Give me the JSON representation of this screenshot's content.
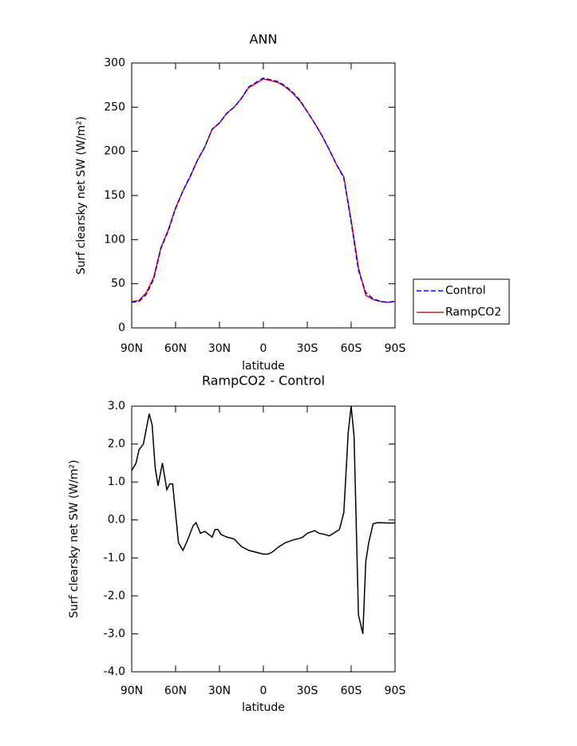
{
  "chart_data": [
    {
      "type": "line",
      "title": "ANN",
      "x_label": "latitude",
      "y_label": "Surf clearsky net SW (W/m²)",
      "x": [
        90,
        85,
        80,
        75,
        70,
        65,
        60,
        55,
        50,
        45,
        40,
        35,
        30,
        25,
        20,
        15,
        10,
        5,
        0,
        -5,
        -10,
        -15,
        -20,
        -25,
        -30,
        -35,
        -40,
        -45,
        -50,
        -55,
        -60,
        -65,
        -70,
        -75,
        -80,
        -85,
        -90
      ],
      "series": [
        {
          "name": "Control",
          "color": "#0000ff",
          "linestyle": "dashed",
          "values": [
            29,
            30,
            38,
            55,
            90,
            110,
            135,
            155,
            172,
            190,
            205,
            225,
            232,
            243,
            250,
            260,
            273,
            278,
            283,
            281,
            279,
            274,
            267,
            258,
            245,
            232,
            218,
            202,
            185,
            170,
            120,
            65,
            40,
            33,
            30,
            29,
            30
          ]
        },
        {
          "name": "RampCO2",
          "color": "#ff0000",
          "linestyle": "solid",
          "values": [
            30,
            31,
            40,
            57,
            91,
            111,
            136,
            155,
            171,
            190,
            205,
            225,
            232,
            243,
            250,
            260,
            272,
            277,
            282,
            280,
            278,
            273,
            266,
            257,
            245,
            232,
            218,
            202,
            185,
            171,
            122,
            68,
            37,
            32,
            30,
            29,
            30
          ]
        }
      ],
      "xlim": [
        90,
        -90
      ],
      "xticks": [
        {
          "value": 90,
          "label": "90N"
        },
        {
          "value": 60,
          "label": "60N"
        },
        {
          "value": 30,
          "label": "30N"
        },
        0,
        {
          "value": -30,
          "label": "30S"
        },
        {
          "value": -60,
          "label": "60S"
        },
        {
          "value": -90,
          "label": "90S"
        }
      ],
      "ylim": [
        0,
        300
      ],
      "yticks": [
        0,
        50,
        100,
        150,
        200,
        250,
        300
      ],
      "legend": "right"
    },
    {
      "type": "line",
      "title": "RampCO2 - Control",
      "x_label": "latitude",
      "y_label": "Surf clearsky net SW (W/m²)",
      "x": [
        90,
        87,
        85,
        82,
        78,
        76,
        74,
        72,
        69,
        66,
        64,
        62,
        58,
        55,
        52,
        48,
        46,
        43,
        40,
        35,
        33,
        31,
        29,
        25,
        20,
        15,
        10,
        5,
        0,
        -3,
        -6,
        -10,
        -15,
        -20,
        -25,
        -27,
        -30,
        -35,
        -38,
        -42,
        -45,
        -48,
        -52,
        -55,
        -58,
        -60,
        -62,
        -65,
        -68,
        -70,
        -72,
        -75,
        -78,
        -85,
        -90
      ],
      "values": [
        1.3,
        1.5,
        1.85,
        2.0,
        2.8,
        2.5,
        1.4,
        0.9,
        1.5,
        0.8,
        0.95,
        0.95,
        -0.6,
        -0.8,
        -0.55,
        -0.15,
        -0.07,
        -0.35,
        -0.3,
        -0.45,
        -0.25,
        -0.25,
        -0.38,
        -0.45,
        -0.5,
        -0.7,
        -0.8,
        -0.85,
        -0.9,
        -0.9,
        -0.85,
        -0.72,
        -0.6,
        -0.53,
        -0.48,
        -0.45,
        -0.35,
        -0.28,
        -0.35,
        -0.38,
        -0.42,
        -0.35,
        -0.25,
        0.2,
        2.3,
        3.0,
        2.2,
        -2.5,
        -3.0,
        -1.1,
        -0.6,
        -0.1,
        -0.07,
        -0.08,
        -0.08
      ],
      "color": "#000000",
      "xlim": [
        90,
        -90
      ],
      "xticks": [
        {
          "value": 90,
          "label": "90N"
        },
        {
          "value": 60,
          "label": "60N"
        },
        {
          "value": 30,
          "label": "30N"
        },
        0,
        {
          "value": -30,
          "label": "30S"
        },
        {
          "value": -60,
          "label": "60S"
        },
        {
          "value": -90,
          "label": "90S"
        }
      ],
      "ylim": [
        -4,
        3
      ],
      "yticks": [
        {
          "value": -4,
          "label": "-4.0"
        },
        {
          "value": -3,
          "label": "-3.0"
        },
        {
          "value": -2,
          "label": "-2.0"
        },
        {
          "value": -1,
          "label": "-1.0"
        },
        {
          "value": 0,
          "label": "0.0"
        },
        {
          "value": 1,
          "label": "1.0"
        },
        {
          "value": 2,
          "label": "2.0"
        },
        {
          "value": 3,
          "label": "3.0"
        }
      ]
    }
  ]
}
